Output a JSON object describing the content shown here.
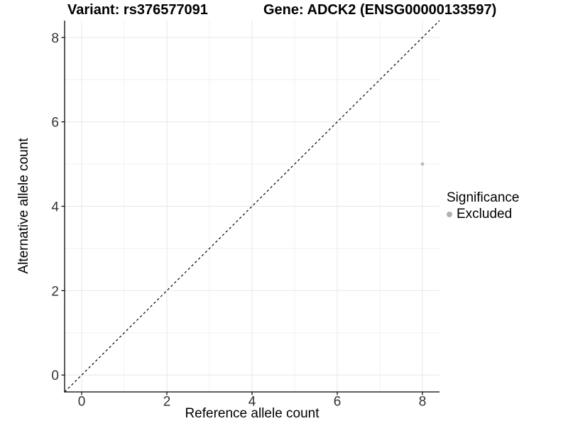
{
  "chart_data": {
    "type": "scatter",
    "titles": {
      "variant": "Variant: rs376577091",
      "gene": "Gene: ADCK2 (ENSG00000133597)"
    },
    "xlabel": "Reference allele count",
    "ylabel": "Alternative allele count",
    "xlim": [
      -0.4,
      8.4
    ],
    "ylim": [
      -0.4,
      8.4
    ],
    "xticks": [
      0,
      2,
      4,
      6,
      8
    ],
    "yticks": [
      0,
      2,
      4,
      6,
      8
    ],
    "x_minor_ticks": [
      1,
      3,
      5,
      7
    ],
    "y_minor_ticks": [
      1,
      3,
      5,
      7
    ],
    "grid": "major+minor",
    "series": [
      {
        "name": "Excluded",
        "color": "#bcbcbc",
        "points": [
          {
            "x": 8,
            "y": 5
          }
        ]
      }
    ],
    "reference_line": {
      "slope": 1,
      "intercept": 0,
      "style": "dashed",
      "color": "#000000"
    },
    "legend": {
      "title": "Significance",
      "position": "right",
      "entries": [
        {
          "label": "Excluded",
          "color": "#b3b3b3",
          "marker": "circle"
        }
      ]
    },
    "colors": {
      "background": "#ffffff",
      "grid_major": "#e7e7e7",
      "grid_minor": "#f1f1f1",
      "axis": "#000000",
      "tick_label": "#333333",
      "title": "#000000"
    }
  }
}
